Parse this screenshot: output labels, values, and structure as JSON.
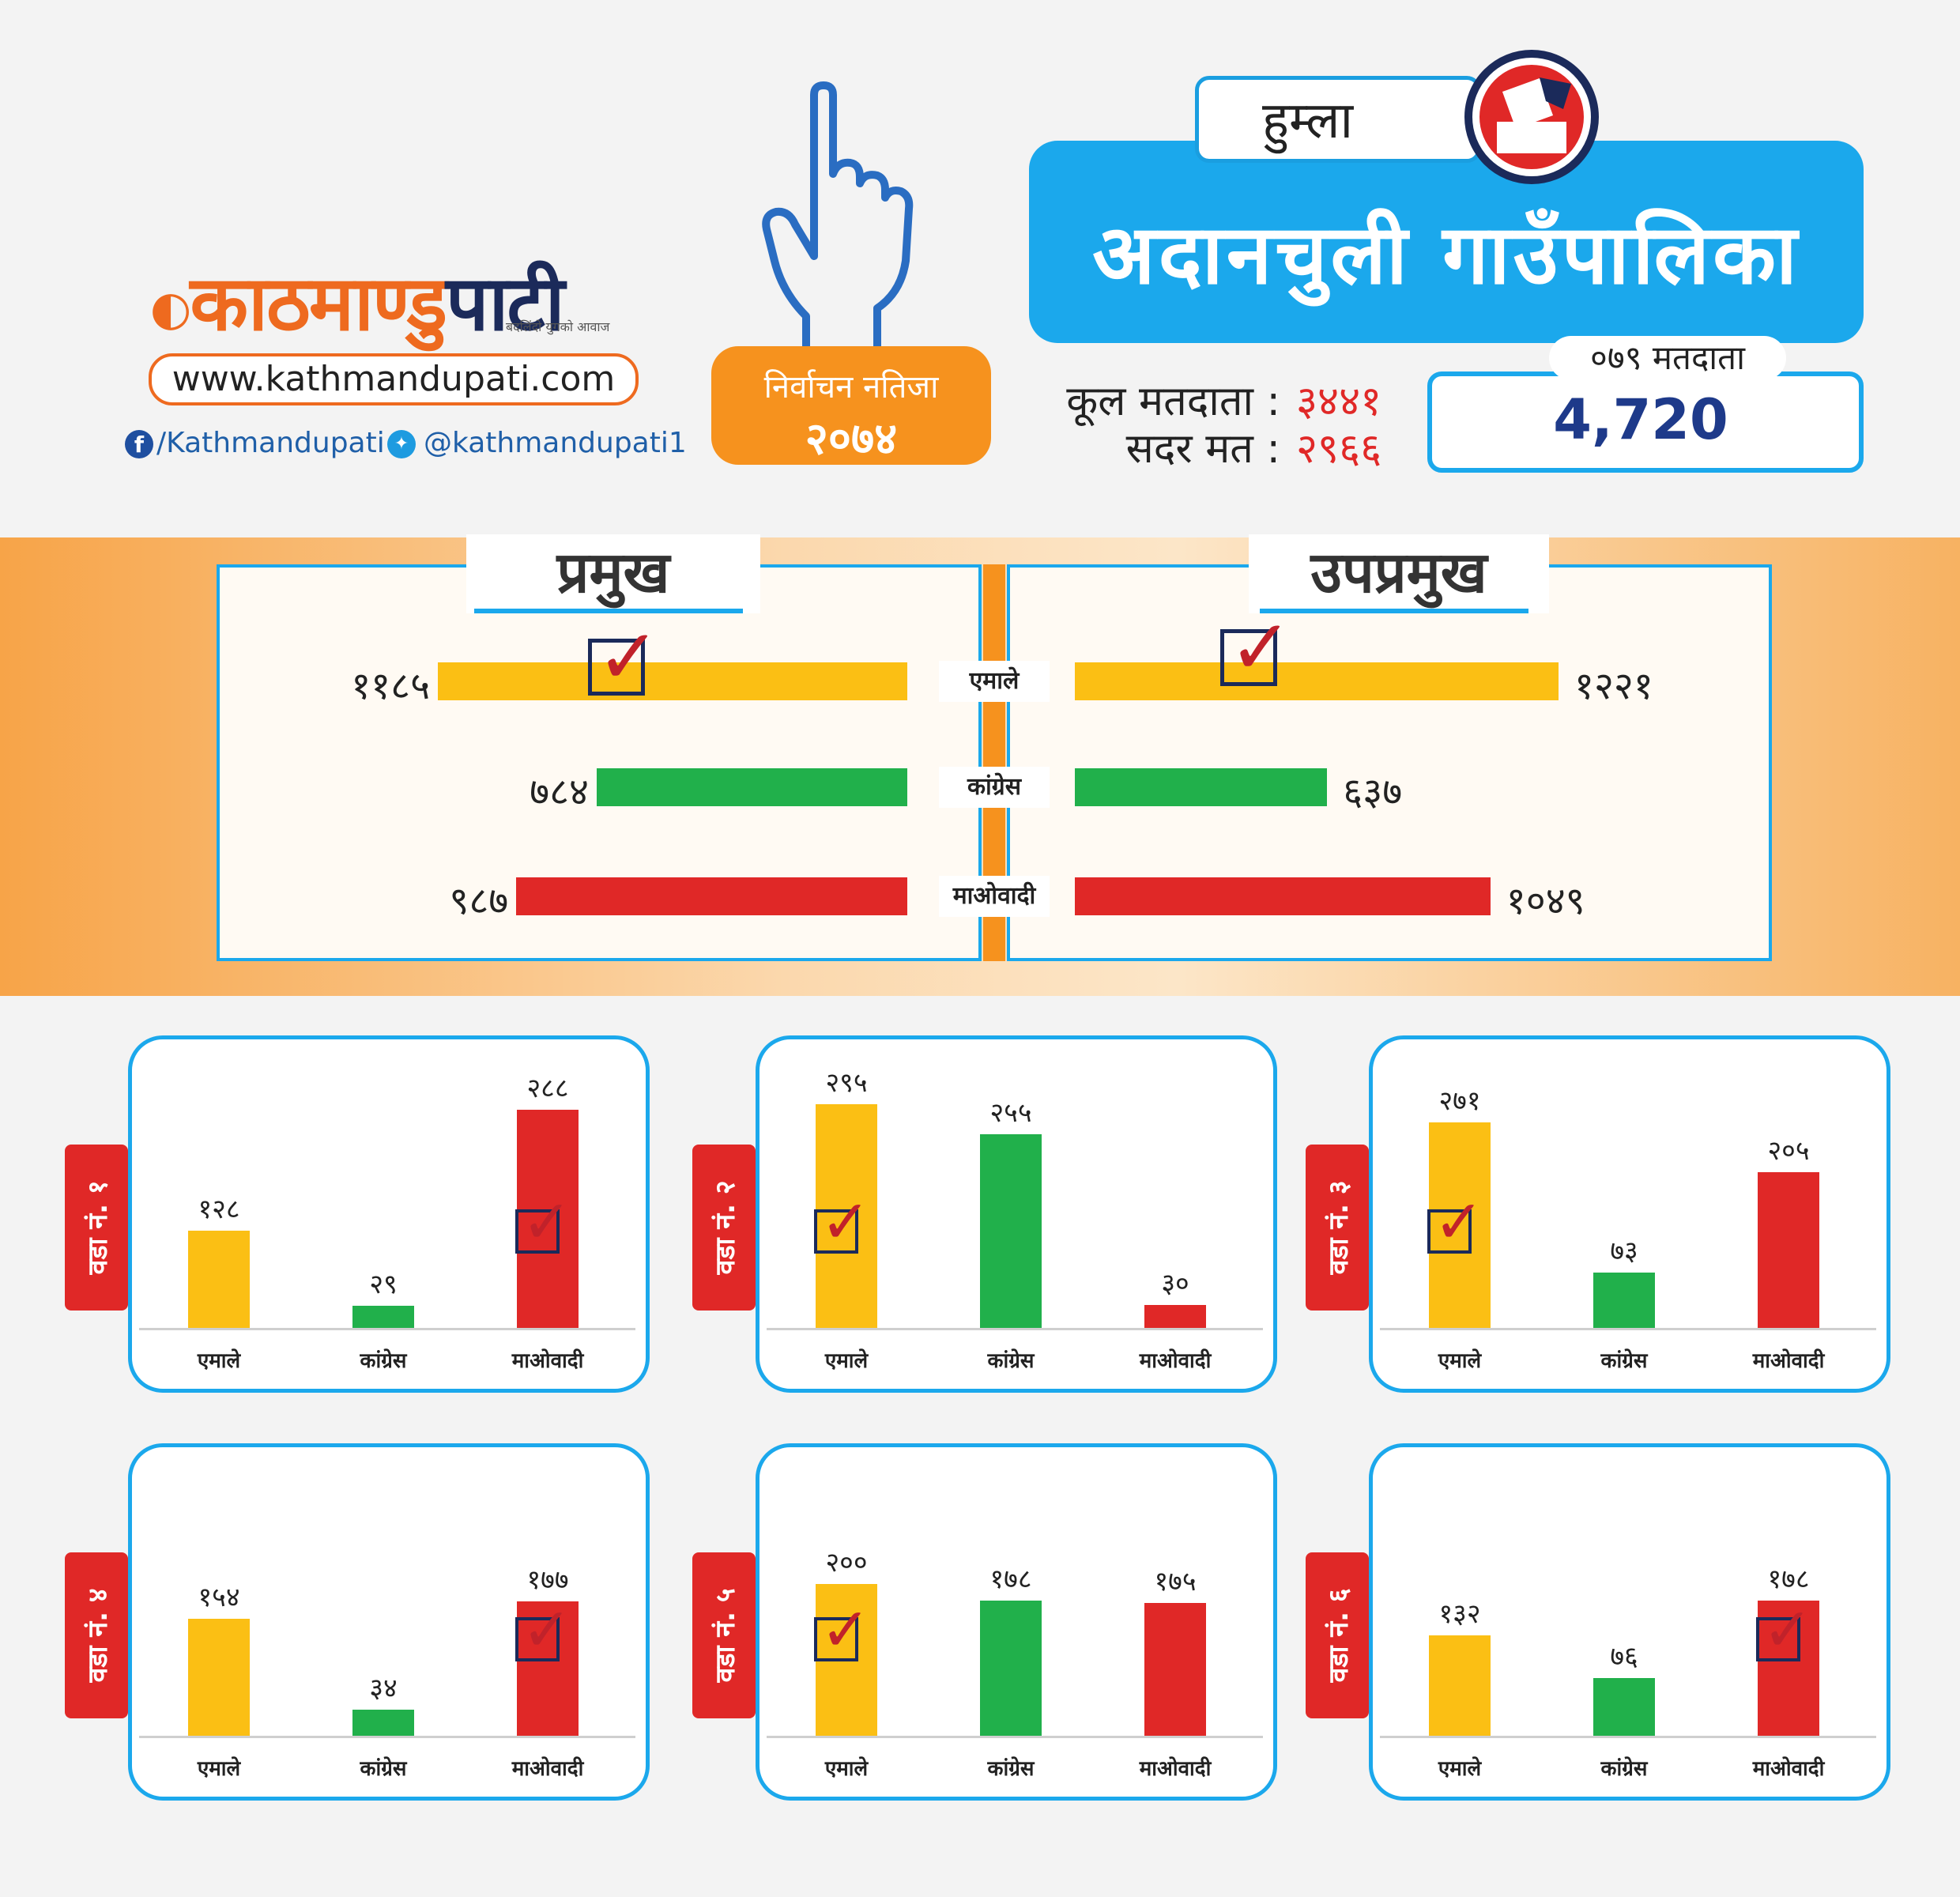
{
  "colors": {
    "top_band": "#2a2f80",
    "bottom_band": "#2a2f80",
    "accent_blue": "#1ba8ec",
    "orange": "#f6921e",
    "red": "#e02827",
    "yellow": "#fbbf14",
    "green": "#21b04b"
  },
  "brand": {
    "logo_part1": "काठमाण्डु",
    "logo_part2": "पाटी",
    "tagline": "बदलिंदो युगको आवाज",
    "url": "www.kathmandupati.com",
    "facebook": "/Kathmandupati",
    "twitter": "@kathmandupati1"
  },
  "result_badge": {
    "line1": "निर्वाचन नतिजा",
    "line2": "२०७४"
  },
  "district": "हुम्ला",
  "municipality": "अदानचुली गाउँपालिका",
  "summary": {
    "total_label": "कूल मतदाता :",
    "total_value": "३४४१",
    "valid_label": "सदर मत :",
    "valid_value": "२९६६"
  },
  "voters_079": {
    "label": "०७९ मतदाता",
    "value": "4,720"
  },
  "chart_data": [
    {
      "type": "bar",
      "title": "प्रमुख",
      "categories": [
        "एमाले",
        "कांग्रेस",
        "माओवादी"
      ],
      "values": [
        1185,
        784,
        987
      ],
      "value_labels": [
        "११८५",
        "७८४",
        "९८७"
      ],
      "winner": "एमाले"
    },
    {
      "type": "bar",
      "title": "उपप्रमुख",
      "categories": [
        "एमाले",
        "कांग्रेस",
        "माओवादी"
      ],
      "values": [
        1221,
        637,
        1049
      ],
      "value_labels": [
        "१२२१",
        "६३७",
        "१०४९"
      ],
      "winner": "एमाले"
    },
    {
      "type": "bar",
      "title": "वडा नं. १",
      "categories": [
        "एमाले",
        "कांग्रेस",
        "माओवादी"
      ],
      "values": [
        128,
        29,
        288
      ],
      "value_labels": [
        "१२८",
        "२९",
        "२८८"
      ],
      "winner": "माओवादी"
    },
    {
      "type": "bar",
      "title": "वडा नं. २",
      "categories": [
        "एमाले",
        "कांग्रेस",
        "माओवादी"
      ],
      "values": [
        295,
        255,
        30
      ],
      "value_labels": [
        "२९५",
        "२५५",
        "३०"
      ],
      "winner": "एमाले"
    },
    {
      "type": "bar",
      "title": "वडा नं. ३",
      "categories": [
        "एमाले",
        "कांग्रेस",
        "माओवादी"
      ],
      "values": [
        271,
        73,
        205
      ],
      "value_labels": [
        "२७१",
        "७३",
        "२०५"
      ],
      "winner": "एमाले"
    },
    {
      "type": "bar",
      "title": "वडा नं. ४",
      "categories": [
        "एमाले",
        "कांग्रेस",
        "माओवादी"
      ],
      "values": [
        154,
        34,
        177
      ],
      "value_labels": [
        "१५४",
        "३४",
        "१७७"
      ],
      "winner": "माओवादी"
    },
    {
      "type": "bar",
      "title": "वडा नं. ५",
      "categories": [
        "एमाले",
        "कांग्रेस",
        "माओवादी"
      ],
      "values": [
        200,
        178,
        175
      ],
      "value_labels": [
        "२००",
        "१७८",
        "१७५"
      ],
      "winner": "एमाले"
    },
    {
      "type": "bar",
      "title": "वडा नं. ६",
      "categories": [
        "एमाले",
        "कांग्रेस",
        "माओवादी"
      ],
      "values": [
        132,
        76,
        178
      ],
      "value_labels": [
        "१३२",
        "७६",
        "१७८"
      ],
      "winner": "माओवादी"
    }
  ]
}
